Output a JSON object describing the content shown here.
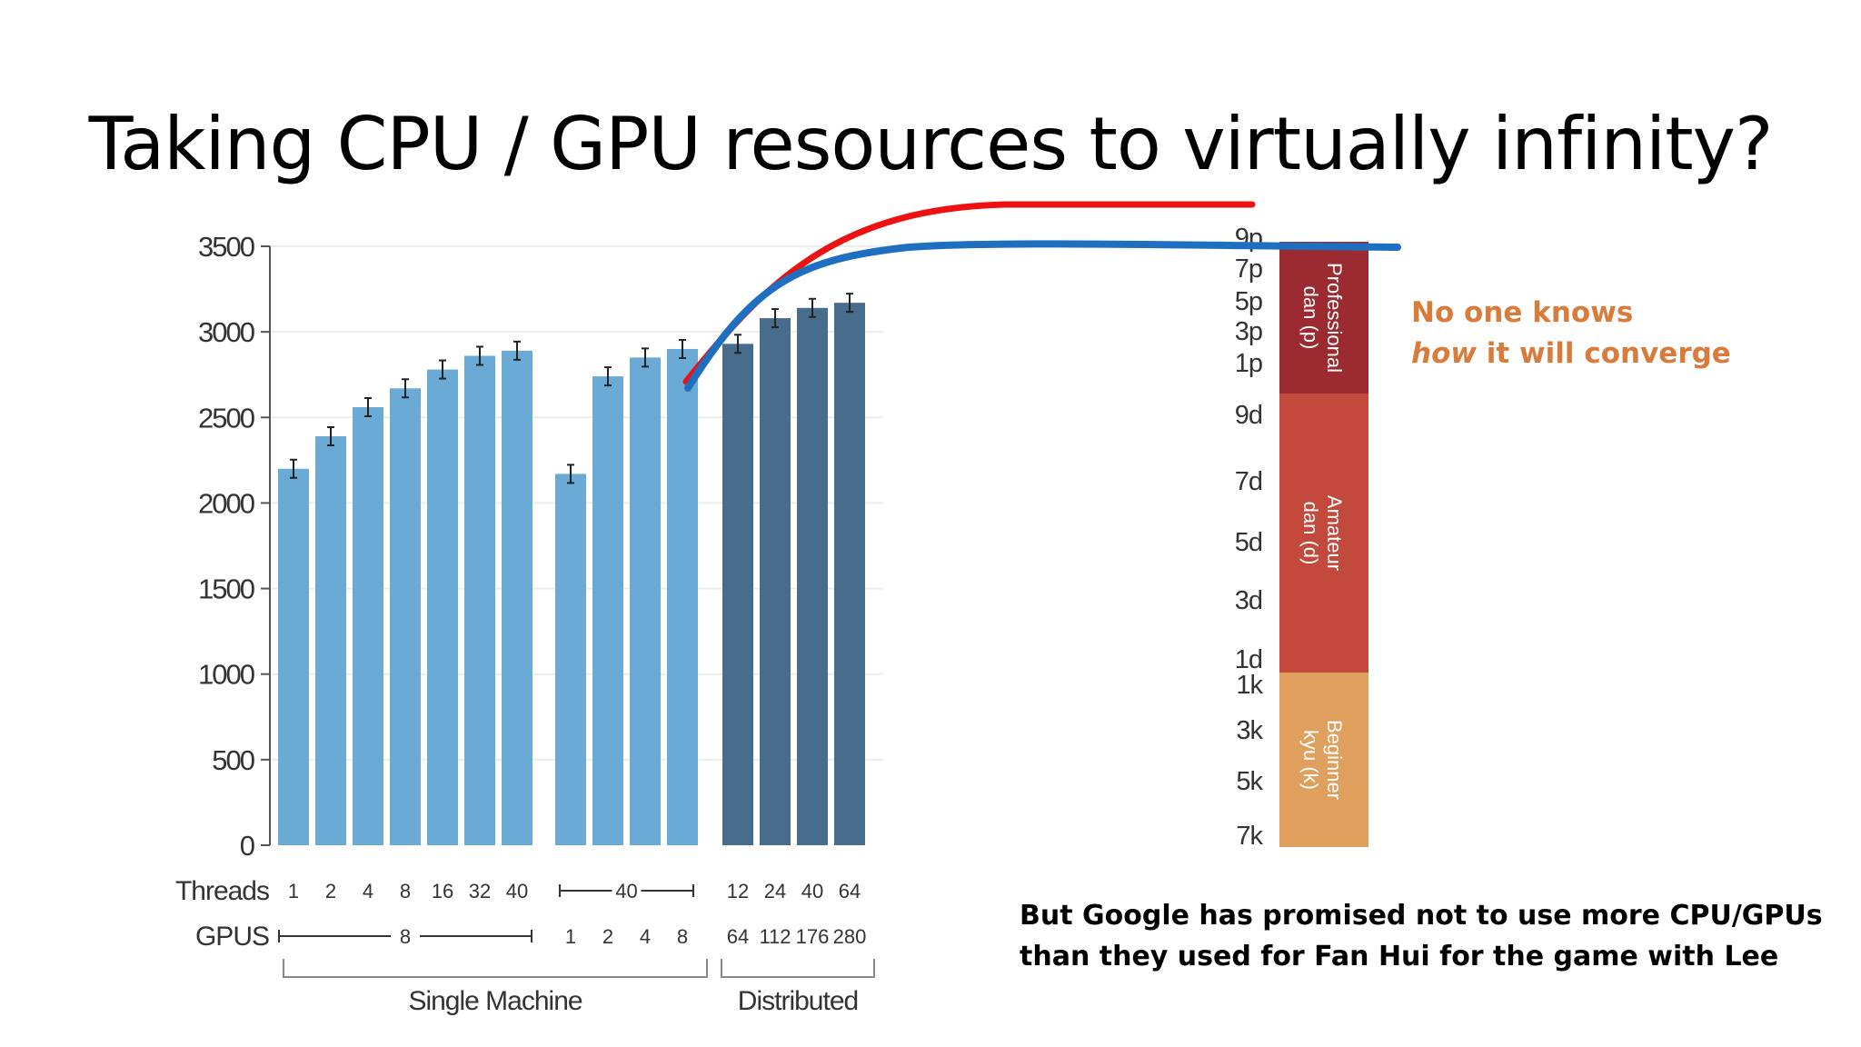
{
  "slide": {
    "title": "Taking CPU / GPU resources to virtually infinity?",
    "note_line1": "No one knows",
    "note_line2_em": "how",
    "note_line2_rest": " it will converge",
    "footnote_line1": "But Google has promised not to use more CPU/GPUs",
    "footnote_line2": "than they used for Fan Hui for the game with Lee"
  },
  "colors": {
    "bar_single": "#6aaad5",
    "bar_distributed": "#486c8c",
    "professional": "#9b2b31",
    "amateur": "#c2493b",
    "beginner": "#e0a05d",
    "curve_blue": "#1f6fc0",
    "curve_red": "#ee1111",
    "note": "#d97b3a"
  },
  "chart_data": {
    "type": "bar",
    "ylim": [
      0,
      3500
    ],
    "yticks": [
      0,
      500,
      1000,
      1500,
      2000,
      2500,
      3000,
      3500
    ],
    "groups": [
      {
        "name": "single_machine_threads",
        "threads": [
          "1",
          "2",
          "4",
          "8",
          "16",
          "32",
          "40"
        ],
        "gpus": [
          "8"
        ],
        "values": [
          2200,
          2390,
          2560,
          2670,
          2780,
          2860,
          2890
        ]
      },
      {
        "name": "single_machine_gpus",
        "threads": [
          "40"
        ],
        "gpus": [
          "1",
          "2",
          "4",
          "8"
        ],
        "values": [
          2170,
          2740,
          2850,
          2900
        ]
      },
      {
        "name": "distributed",
        "threads": [
          "12",
          "24",
          "40",
          "64"
        ],
        "gpus": [
          "64",
          "112",
          "176",
          "280"
        ],
        "values": [
          2930,
          3080,
          3140,
          3170
        ]
      }
    ],
    "row_labels": {
      "threads": "Threads",
      "gpus": "GPUS"
    },
    "section_labels": {
      "single": "Single Machine",
      "distributed": "Distributed"
    }
  },
  "rank_scale": {
    "labels": [
      "9p",
      "7p",
      "5p",
      "3p",
      "1p",
      "9d",
      "7d",
      "5d",
      "3d",
      "1d",
      "1k",
      "3k",
      "5k",
      "7k"
    ],
    "bands": [
      {
        "line1": "Professional",
        "line2": "dan (p)"
      },
      {
        "line1": "Amateur",
        "line2": "dan (d)"
      },
      {
        "line1": "Beginner",
        "line2": "kyu (k)"
      }
    ]
  }
}
